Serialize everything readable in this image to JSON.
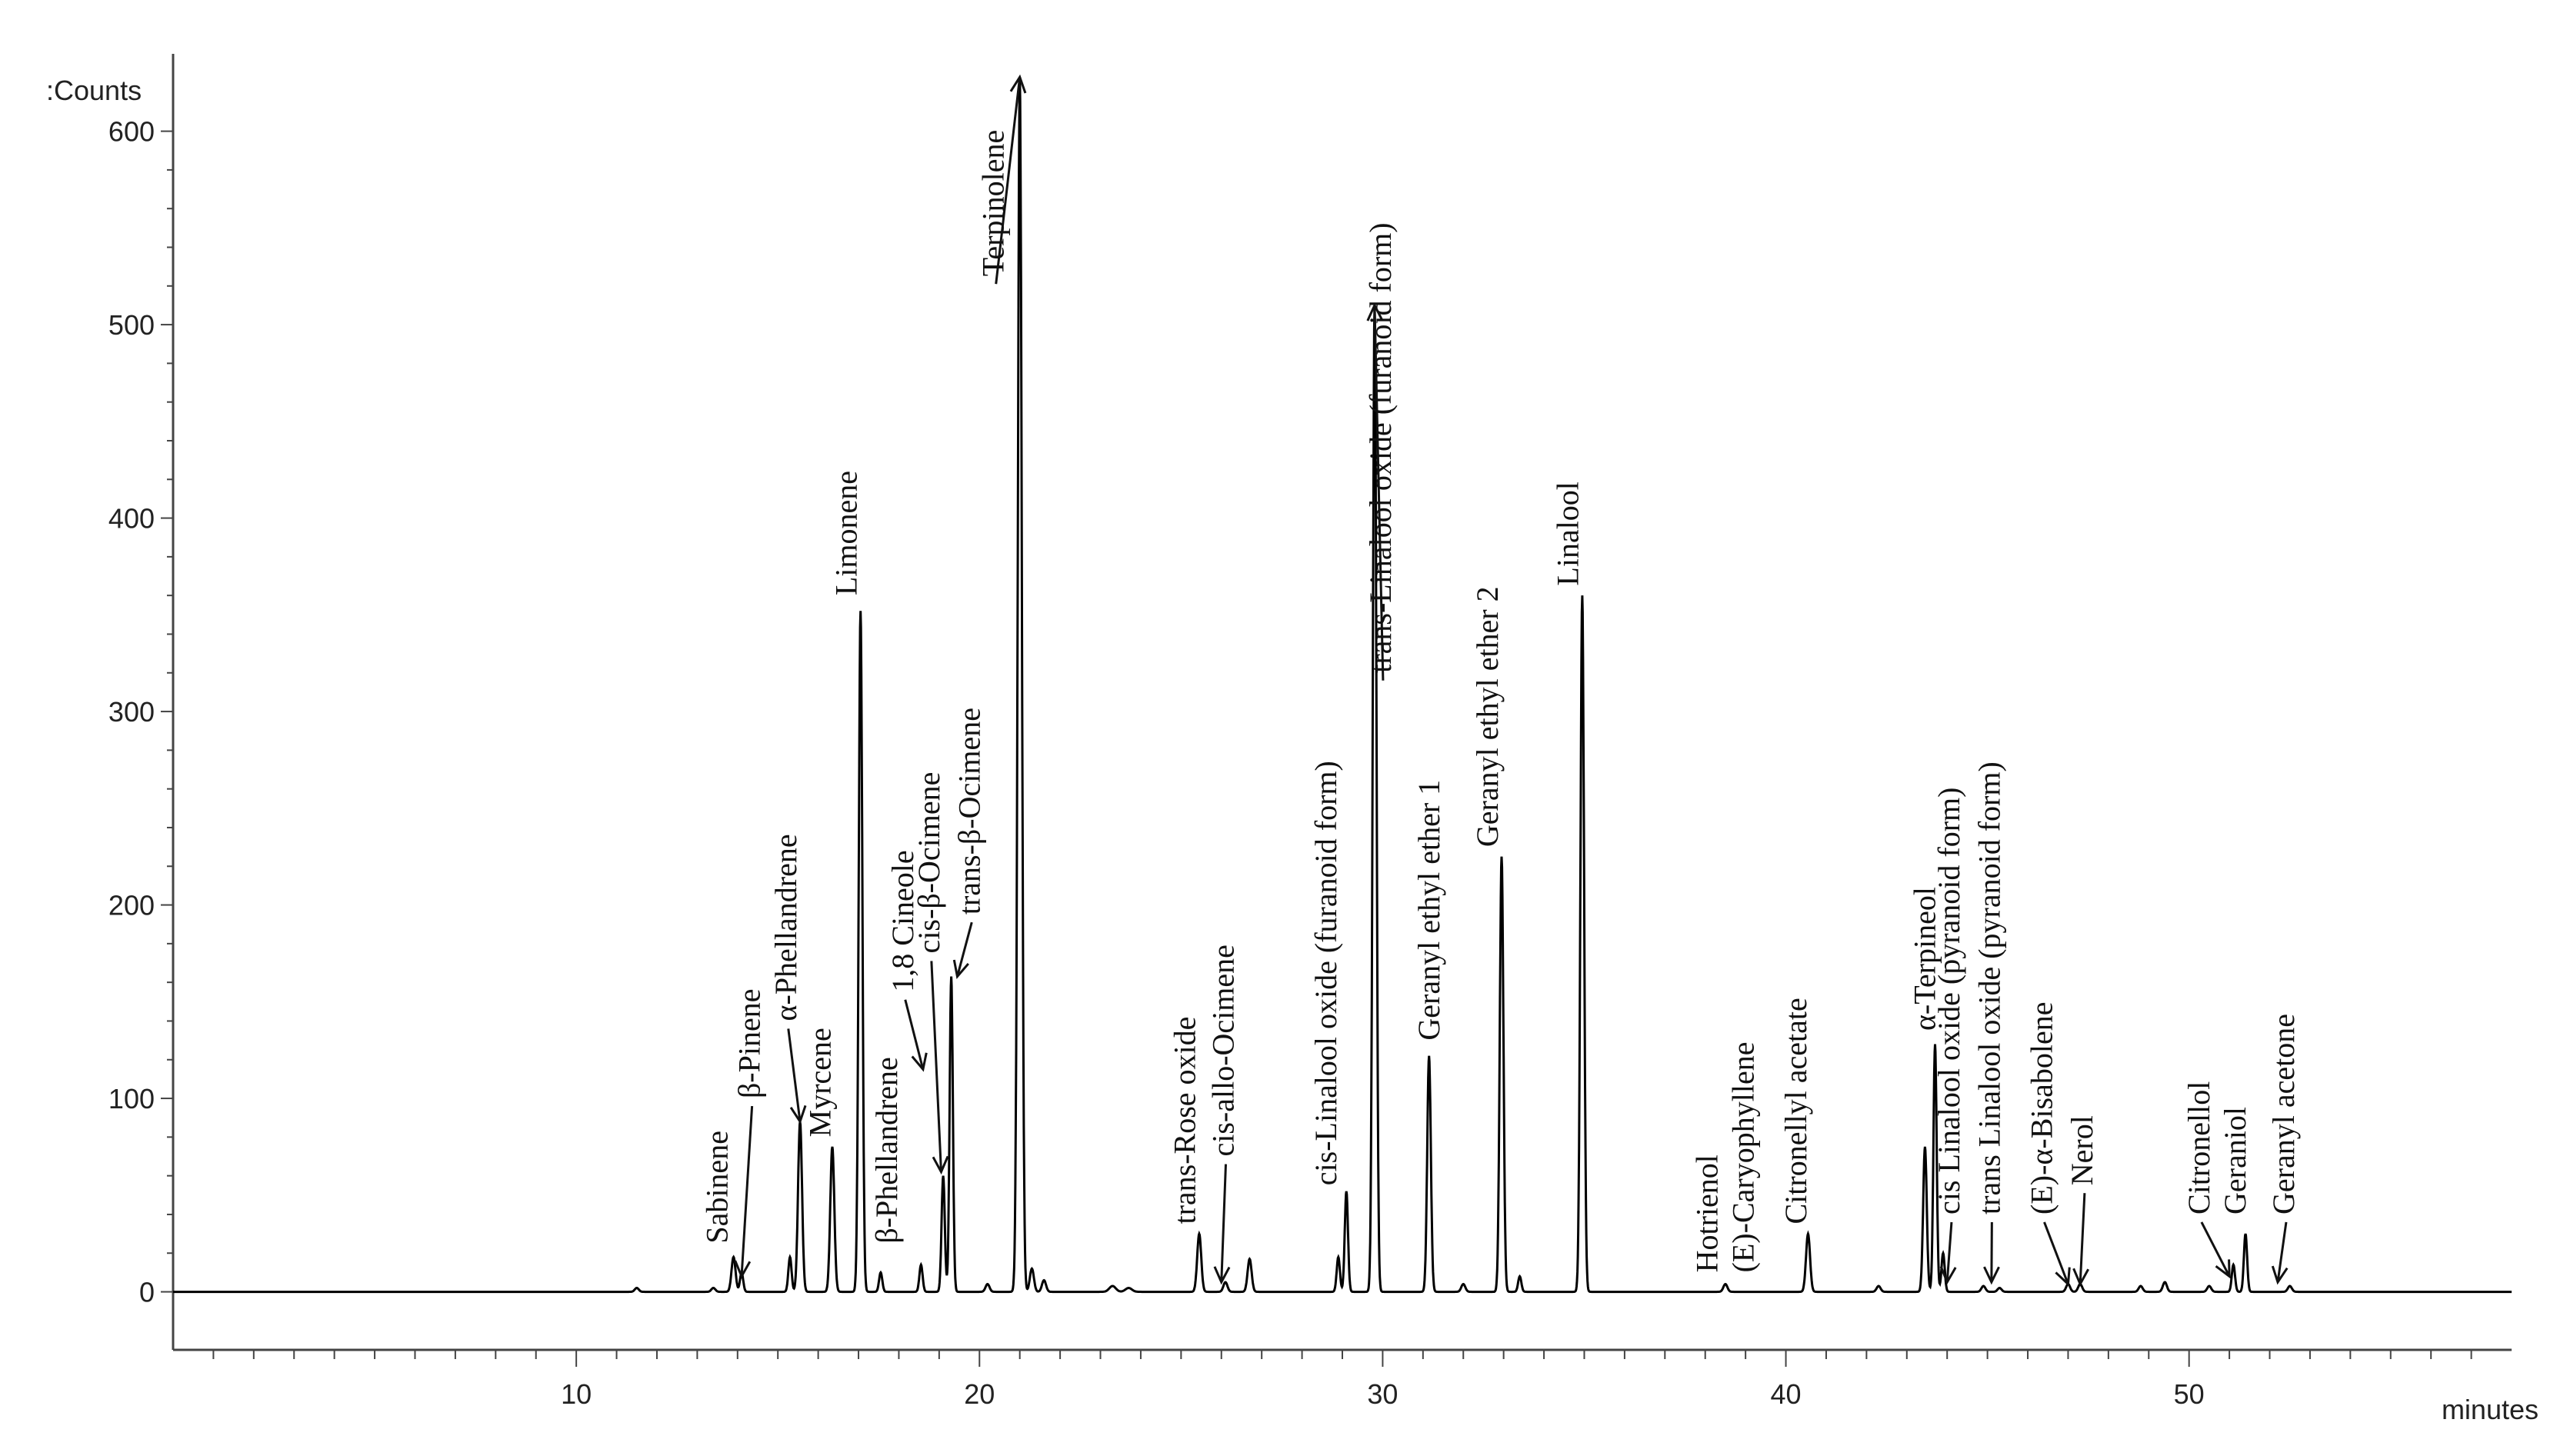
{
  "chart_data": {
    "type": "line",
    "title": "",
    "ylabel": ":Counts",
    "xlabel": "minutes",
    "xlim": [
      0,
      58
    ],
    "ylim": [
      -30,
      640
    ],
    "xticks": [
      10,
      20,
      30,
      40,
      50
    ],
    "yticks": [
      0,
      100,
      200,
      300,
      400,
      500,
      600
    ],
    "grid": false,
    "series": [
      {
        "name": "chromatogram",
        "color": "#000000",
        "peaks": [
          {
            "x": 11.5,
            "y": 2,
            "w": 0.05
          },
          {
            "x": 13.4,
            "y": 2,
            "w": 0.05
          },
          {
            "x": 13.9,
            "y": 18,
            "w": 0.05
          },
          {
            "x": 14.1,
            "y": 10,
            "w": 0.04
          },
          {
            "x": 15.3,
            "y": 18,
            "w": 0.04
          },
          {
            "x": 15.55,
            "y": 88,
            "w": 0.05
          },
          {
            "x": 16.35,
            "y": 75,
            "w": 0.05
          },
          {
            "x": 17.05,
            "y": 352,
            "w": 0.045
          },
          {
            "x": 17.55,
            "y": 10,
            "w": 0.04
          },
          {
            "x": 18.55,
            "y": 14,
            "w": 0.04
          },
          {
            "x": 19.1,
            "y": 60,
            "w": 0.04
          },
          {
            "x": 19.3,
            "y": 163,
            "w": 0.04
          },
          {
            "x": 20.2,
            "y": 4,
            "w": 0.05
          },
          {
            "x": 21.0,
            "y": 628,
            "w": 0.05
          },
          {
            "x": 21.3,
            "y": 12,
            "w": 0.05
          },
          {
            "x": 21.6,
            "y": 6,
            "w": 0.05
          },
          {
            "x": 23.3,
            "y": 3,
            "w": 0.08
          },
          {
            "x": 23.7,
            "y": 2,
            "w": 0.08
          },
          {
            "x": 25.45,
            "y": 30,
            "w": 0.05
          },
          {
            "x": 26.1,
            "y": 5,
            "w": 0.05
          },
          {
            "x": 26.7,
            "y": 17,
            "w": 0.05
          },
          {
            "x": 28.9,
            "y": 18,
            "w": 0.04
          },
          {
            "x": 29.1,
            "y": 52,
            "w": 0.04
          },
          {
            "x": 29.8,
            "y": 510,
            "w": 0.045
          },
          {
            "x": 31.15,
            "y": 122,
            "w": 0.045
          },
          {
            "x": 32.0,
            "y": 4,
            "w": 0.05
          },
          {
            "x": 32.95,
            "y": 225,
            "w": 0.045
          },
          {
            "x": 33.4,
            "y": 8,
            "w": 0.04
          },
          {
            "x": 34.95,
            "y": 360,
            "w": 0.045
          },
          {
            "x": 38.5,
            "y": 4,
            "w": 0.05
          },
          {
            "x": 40.55,
            "y": 30,
            "w": 0.05
          },
          {
            "x": 42.3,
            "y": 3,
            "w": 0.05
          },
          {
            "x": 43.45,
            "y": 75,
            "w": 0.045
          },
          {
            "x": 43.7,
            "y": 128,
            "w": 0.04
          },
          {
            "x": 43.9,
            "y": 20,
            "w": 0.04
          },
          {
            "x": 44.9,
            "y": 3,
            "w": 0.05
          },
          {
            "x": 45.3,
            "y": 2,
            "w": 0.05
          },
          {
            "x": 47.0,
            "y": 4,
            "w": 0.05
          },
          {
            "x": 47.3,
            "y": 4,
            "w": 0.05
          },
          {
            "x": 48.8,
            "y": 3,
            "w": 0.05
          },
          {
            "x": 49.4,
            "y": 5,
            "w": 0.05
          },
          {
            "x": 50.5,
            "y": 3,
            "w": 0.05
          },
          {
            "x": 51.1,
            "y": 14,
            "w": 0.04
          },
          {
            "x": 51.4,
            "y": 30,
            "w": 0.04
          },
          {
            "x": 52.5,
            "y": 3,
            "w": 0.05
          }
        ]
      }
    ],
    "annotations": [
      {
        "text": "Sabinene",
        "x": 13.75,
        "y": 25,
        "arrow_x": 13.95,
        "arrow_y": 18
      },
      {
        "text": "β-Pinene",
        "x": 14.55,
        "y": 100,
        "arrow_x": 14.1,
        "arrow_y": 8
      },
      {
        "text": "α-Phellandrene",
        "x": 15.45,
        "y": 140,
        "arrow_x": 15.55,
        "arrow_y": 88
      },
      {
        "text": "Myrcene",
        "x": 16.3,
        "y": 80,
        "arrow_x": 16.35,
        "arrow_y": 75
      },
      {
        "text": "Limonene",
        "x": 16.95,
        "y": 360,
        "arrow_x": 17.05,
        "arrow_y": 352
      },
      {
        "text": "β-Phellandrene",
        "x": 17.95,
        "y": 25,
        "arrow_x": 17.55,
        "arrow_y": 10
      },
      {
        "text": "1,8 Cineole",
        "x": 18.35,
        "y": 155,
        "arrow_x": 18.6,
        "arrow_y": 115
      },
      {
        "text": "cis-β-Ocimene",
        "x": 19.0,
        "y": 175,
        "arrow_x": 19.05,
        "arrow_y": 62
      },
      {
        "text": "trans-β-Ocimene",
        "x": 20.0,
        "y": 195,
        "arrow_x": 19.45,
        "arrow_y": 163
      },
      {
        "text": "Terpinolene",
        "x": 20.6,
        "y": 525,
        "arrow_x": 21.0,
        "arrow_y": 628
      },
      {
        "text": "trans-Rose oxide",
        "x": 25.35,
        "y": 35,
        "arrow_x": 25.45,
        "arrow_y": 30
      },
      {
        "text": "cis-allo-Ocimene",
        "x": 26.3,
        "y": 70,
        "arrow_x": 26.0,
        "arrow_y": 5
      },
      {
        "text": "cis-Linalool oxide (furanoid form)",
        "x": 28.85,
        "y": 55,
        "arrow_x": 29.1,
        "arrow_y": 52
      },
      {
        "text": "trans-Linalool oxide (furanoid form)",
        "x": 30.2,
        "y": 320,
        "arrow_x": 29.8,
        "arrow_y": 510
      },
      {
        "text": "Geranyl ethyl ether 1",
        "x": 31.4,
        "y": 130,
        "arrow_x": 31.15,
        "arrow_y": 122
      },
      {
        "text": "Geranyl ethyl ether 2",
        "x": 32.85,
        "y": 230,
        "arrow_x": 32.95,
        "arrow_y": 225
      },
      {
        "text": "Linalool",
        "x": 34.85,
        "y": 365,
        "arrow_x": 34.95,
        "arrow_y": 360
      },
      {
        "text": "Hotrienol",
        "x": 38.3,
        "y": 10,
        "arrow_x": 38.5,
        "arrow_y": 4
      },
      {
        "text": "(E)-Caryophyllene",
        "x": 39.2,
        "y": 10,
        "arrow_x": 39.2,
        "arrow_y": 2
      },
      {
        "text": "Citronellyl acetate",
        "x": 40.5,
        "y": 35,
        "arrow_x": 40.55,
        "arrow_y": 30
      },
      {
        "text": "α-Terpineol",
        "x": 43.7,
        "y": 135,
        "arrow_x": 43.7,
        "arrow_y": 128
      },
      {
        "text": "cis Linalool oxide (pyranoid form)",
        "x": 44.3,
        "y": 40,
        "arrow_x": 44.0,
        "arrow_y": 5
      },
      {
        "text": "trans Linalool oxide (pyranoid form)",
        "x": 45.3,
        "y": 40,
        "arrow_x": 45.1,
        "arrow_y": 5
      },
      {
        "text": "(E)-α-Bisabolene",
        "x": 46.6,
        "y": 40,
        "arrow_x": 47.0,
        "arrow_y": 4
      },
      {
        "text": "Nerol",
        "x": 47.6,
        "y": 55,
        "arrow_x": 47.3,
        "arrow_y": 4
      },
      {
        "text": "Citronellol",
        "x": 50.5,
        "y": 40,
        "arrow_x": 51.0,
        "arrow_y": 8
      },
      {
        "text": "Geraniol",
        "x": 51.4,
        "y": 40,
        "arrow_x": 51.4,
        "arrow_y": 30
      },
      {
        "text": "Geranyl acetone",
        "x": 52.6,
        "y": 40,
        "arrow_x": 52.2,
        "arrow_y": 5
      }
    ]
  }
}
